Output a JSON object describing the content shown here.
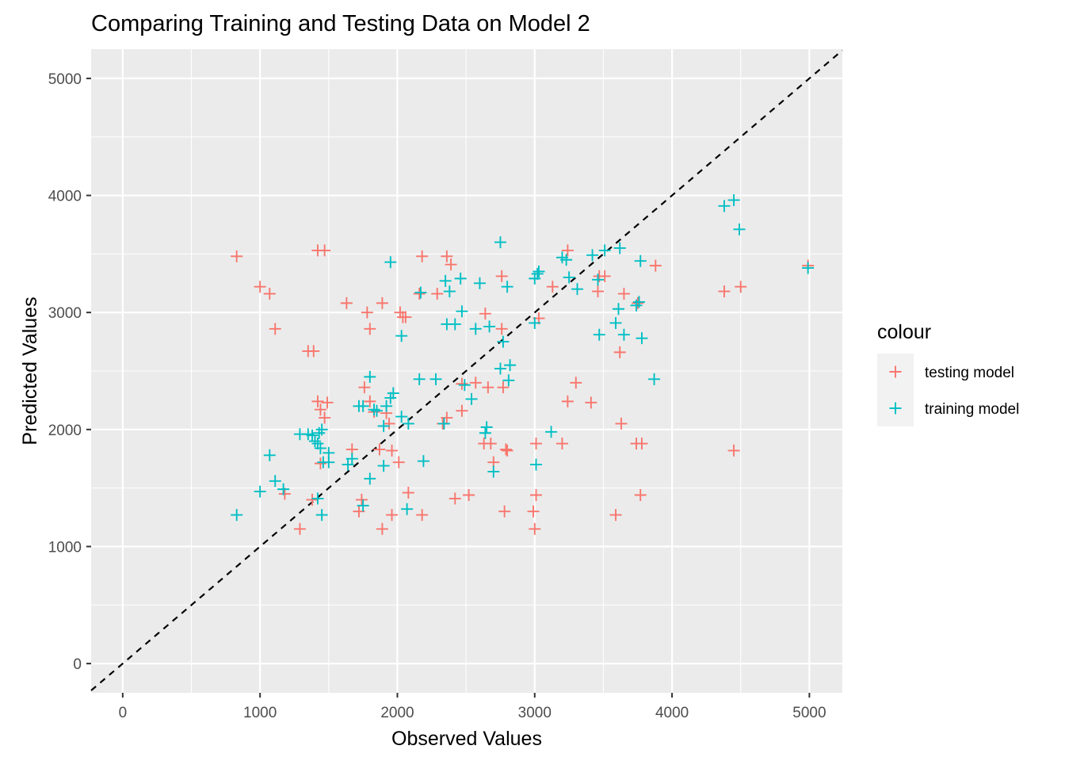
{
  "chart_data": {
    "type": "scatter",
    "title": "Comparing Training and Testing Data on Model 2",
    "xlabel": "Observed Values",
    "ylabel": "Predicted Values",
    "xlim": [
      -230,
      5240
    ],
    "ylim": [
      -250,
      5250
    ],
    "x_ticks": [
      0,
      1000,
      2000,
      3000,
      4000,
      5000
    ],
    "y_ticks": [
      0,
      1000,
      2000,
      3000,
      4000,
      5000
    ],
    "x_tick_labels": [
      "0",
      "1000",
      "2000",
      "3000",
      "4000",
      "5000"
    ],
    "y_tick_labels": [
      "0",
      "1000",
      "2000",
      "3000",
      "4000",
      "5000"
    ],
    "grid": true,
    "reference_line": {
      "slope": 1,
      "intercept": 0,
      "style": "dashed",
      "color": "#000000"
    },
    "legend": {
      "title": "colour",
      "placement": "right",
      "entries": [
        "testing model",
        "training model"
      ]
    },
    "series": [
      {
        "name": "testing model",
        "color": "#F8766D",
        "marker": "plus",
        "points": [
          [
            830,
            3480
          ],
          [
            1000,
            3220
          ],
          [
            1070,
            3160
          ],
          [
            1110,
            2860
          ],
          [
            1420,
            3530
          ],
          [
            1470,
            3530
          ],
          [
            1350,
            2670
          ],
          [
            1390,
            2670
          ],
          [
            1630,
            3080
          ],
          [
            1780,
            3000
          ],
          [
            1800,
            2860
          ],
          [
            1890,
            3080
          ],
          [
            2020,
            3000
          ],
          [
            2040,
            2960
          ],
          [
            2060,
            2960
          ],
          [
            2180,
            3480
          ],
          [
            2360,
            3480
          ],
          [
            2390,
            3410
          ],
          [
            2290,
            3160
          ],
          [
            2160,
            3160
          ],
          [
            1420,
            2240
          ],
          [
            1440,
            2170
          ],
          [
            1470,
            2100
          ],
          [
            1490,
            2230
          ],
          [
            1760,
            2360
          ],
          [
            1800,
            2240
          ],
          [
            1830,
            2150
          ],
          [
            1920,
            2140
          ],
          [
            1940,
            2050
          ],
          [
            1960,
            1820
          ],
          [
            2010,
            1720
          ],
          [
            1870,
            1830
          ],
          [
            1670,
            1830
          ],
          [
            1440,
            1710
          ],
          [
            1380,
            1400
          ],
          [
            1180,
            1450
          ],
          [
            1290,
            1150
          ],
          [
            1720,
            1300
          ],
          [
            1740,
            1400
          ],
          [
            1890,
            1150
          ],
          [
            1960,
            1270
          ],
          [
            2080,
            1460
          ],
          [
            2180,
            1270
          ],
          [
            2420,
            1410
          ],
          [
            2520,
            1440
          ],
          [
            2330,
            2050
          ],
          [
            2360,
            2100
          ],
          [
            2470,
            2390
          ],
          [
            2470,
            2160
          ],
          [
            2570,
            2400
          ],
          [
            2640,
            2990
          ],
          [
            2660,
            2360
          ],
          [
            2760,
            3310
          ],
          [
            2760,
            2860
          ],
          [
            2770,
            2360
          ],
          [
            2630,
            1880
          ],
          [
            2680,
            1880
          ],
          [
            2700,
            1720
          ],
          [
            2790,
            1830
          ],
          [
            2800,
            1820
          ],
          [
            2780,
            1300
          ],
          [
            2990,
            1300
          ],
          [
            3000,
            1150
          ],
          [
            3010,
            1880
          ],
          [
            3010,
            1440
          ],
          [
            3030,
            2950
          ],
          [
            3130,
            3220
          ],
          [
            3200,
            1880
          ],
          [
            3240,
            2240
          ],
          [
            3240,
            3530
          ],
          [
            3300,
            2400
          ],
          [
            3410,
            2230
          ],
          [
            3460,
            3180
          ],
          [
            3470,
            3310
          ],
          [
            3510,
            3310
          ],
          [
            3590,
            1270
          ],
          [
            3620,
            2660
          ],
          [
            3630,
            2050
          ],
          [
            3650,
            3160
          ],
          [
            3740,
            1880
          ],
          [
            3780,
            1880
          ],
          [
            3770,
            1440
          ],
          [
            3750,
            3080
          ],
          [
            3880,
            3400
          ],
          [
            4380,
            3180
          ],
          [
            4450,
            1820
          ],
          [
            4500,
            3220
          ],
          [
            4990,
            3400
          ]
        ]
      },
      {
        "name": "training model",
        "color": "#00BFC4",
        "marker": "plus",
        "points": [
          [
            830,
            1270
          ],
          [
            1000,
            1470
          ],
          [
            1070,
            1780
          ],
          [
            1110,
            1560
          ],
          [
            1170,
            1490
          ],
          [
            1290,
            1960
          ],
          [
            1350,
            1960
          ],
          [
            1380,
            1950
          ],
          [
            1400,
            1900
          ],
          [
            1420,
            1880
          ],
          [
            1430,
            1970
          ],
          [
            1440,
            1840
          ],
          [
            1450,
            2000
          ],
          [
            1420,
            1410
          ],
          [
            1450,
            1270
          ],
          [
            1460,
            1720
          ],
          [
            1500,
            1800
          ],
          [
            1500,
            1720
          ],
          [
            1640,
            1700
          ],
          [
            1670,
            1750
          ],
          [
            1720,
            2200
          ],
          [
            1750,
            2200
          ],
          [
            1750,
            1350
          ],
          [
            1800,
            1580
          ],
          [
            1800,
            2450
          ],
          [
            1830,
            2170
          ],
          [
            1850,
            2160
          ],
          [
            1900,
            1690
          ],
          [
            1900,
            2030
          ],
          [
            1920,
            2200
          ],
          [
            1950,
            2270
          ],
          [
            1970,
            2310
          ],
          [
            1950,
            3430
          ],
          [
            2030,
            2800
          ],
          [
            2030,
            2110
          ],
          [
            2080,
            2050
          ],
          [
            2070,
            1320
          ],
          [
            2160,
            2430
          ],
          [
            2170,
            3170
          ],
          [
            2190,
            1730
          ],
          [
            2280,
            2430
          ],
          [
            2340,
            2050
          ],
          [
            2350,
            3270
          ],
          [
            2360,
            2900
          ],
          [
            2380,
            3180
          ],
          [
            2420,
            2900
          ],
          [
            2460,
            3290
          ],
          [
            2470,
            3010
          ],
          [
            2490,
            2380
          ],
          [
            2540,
            2260
          ],
          [
            2570,
            2860
          ],
          [
            2600,
            3250
          ],
          [
            2640,
            1970
          ],
          [
            2650,
            2020
          ],
          [
            2670,
            2880
          ],
          [
            2700,
            1640
          ],
          [
            2750,
            3600
          ],
          [
            2750,
            2520
          ],
          [
            2770,
            2750
          ],
          [
            2800,
            3220
          ],
          [
            2810,
            2420
          ],
          [
            2820,
            2550
          ],
          [
            3000,
            2910
          ],
          [
            3000,
            3290
          ],
          [
            3020,
            3330
          ],
          [
            3030,
            3350
          ],
          [
            3010,
            1700
          ],
          [
            3120,
            1980
          ],
          [
            3200,
            3470
          ],
          [
            3230,
            3450
          ],
          [
            3250,
            3300
          ],
          [
            3310,
            3200
          ],
          [
            3420,
            3490
          ],
          [
            3460,
            3280
          ],
          [
            3470,
            2810
          ],
          [
            3510,
            3530
          ],
          [
            3590,
            2910
          ],
          [
            3610,
            3030
          ],
          [
            3620,
            3550
          ],
          [
            3650,
            2810
          ],
          [
            3740,
            3060
          ],
          [
            3760,
            3090
          ],
          [
            3770,
            3440
          ],
          [
            3780,
            2780
          ],
          [
            3870,
            2430
          ],
          [
            4380,
            3910
          ],
          [
            4450,
            3960
          ],
          [
            4490,
            3710
          ],
          [
            4990,
            3380
          ]
        ]
      }
    ]
  }
}
